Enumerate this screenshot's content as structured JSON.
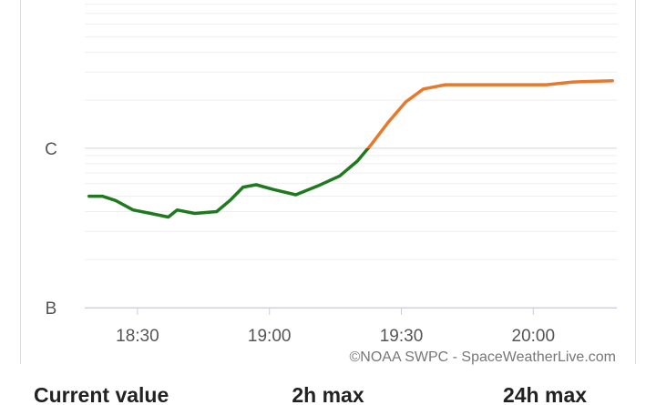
{
  "chart_data": {
    "type": "line",
    "x": [
      "18:19",
      "18:22",
      "18:25",
      "18:29",
      "18:33",
      "18:37",
      "18:39",
      "18:43",
      "18:48",
      "18:51",
      "18:54",
      "18:57",
      "19:01",
      "19:06",
      "19:11",
      "19:16",
      "19:20",
      "19:23",
      "19:27",
      "19:31",
      "19:35",
      "19:40",
      "19:49",
      "20:03",
      "20:09",
      "20:18"
    ],
    "series": [
      {
        "colors": [
          "#1f7a1f",
          "#e8792b"
        ],
        "values": [
          5e-07,
          5e-07,
          4.7e-07,
          4.1e-07,
          3.9e-07,
          3.7e-07,
          4.1e-07,
          3.9e-07,
          4e-07,
          4.7e-07,
          5.7e-07,
          5.9e-07,
          5.5e-07,
          5.1e-07,
          5.8e-07,
          6.7e-07,
          8.3e-07,
          1.04e-06,
          1.45e-06,
          1.95e-06,
          2.35e-06,
          2.5e-06,
          2.5e-06,
          2.5e-06,
          2.6e-06,
          2.65e-06
        ]
      }
    ],
    "xlim": [
      "18:18",
      "20:19"
    ],
    "xticks": [
      "18:30",
      "19:00",
      "19:30",
      "20:00"
    ],
    "ylim": [
      1e-07,
      8.5e-06
    ],
    "yticks": [
      {
        "value": 1e-07,
        "label": "B"
      },
      {
        "value": 1e-06,
        "label": "C"
      }
    ],
    "log_y": true,
    "grid": true,
    "minor_grid": true,
    "credit": "©NOAA SWPC - SpaceWeatherLive.com"
  },
  "footer": {
    "labels": [
      "Current value",
      "2h max",
      "24h max"
    ]
  }
}
